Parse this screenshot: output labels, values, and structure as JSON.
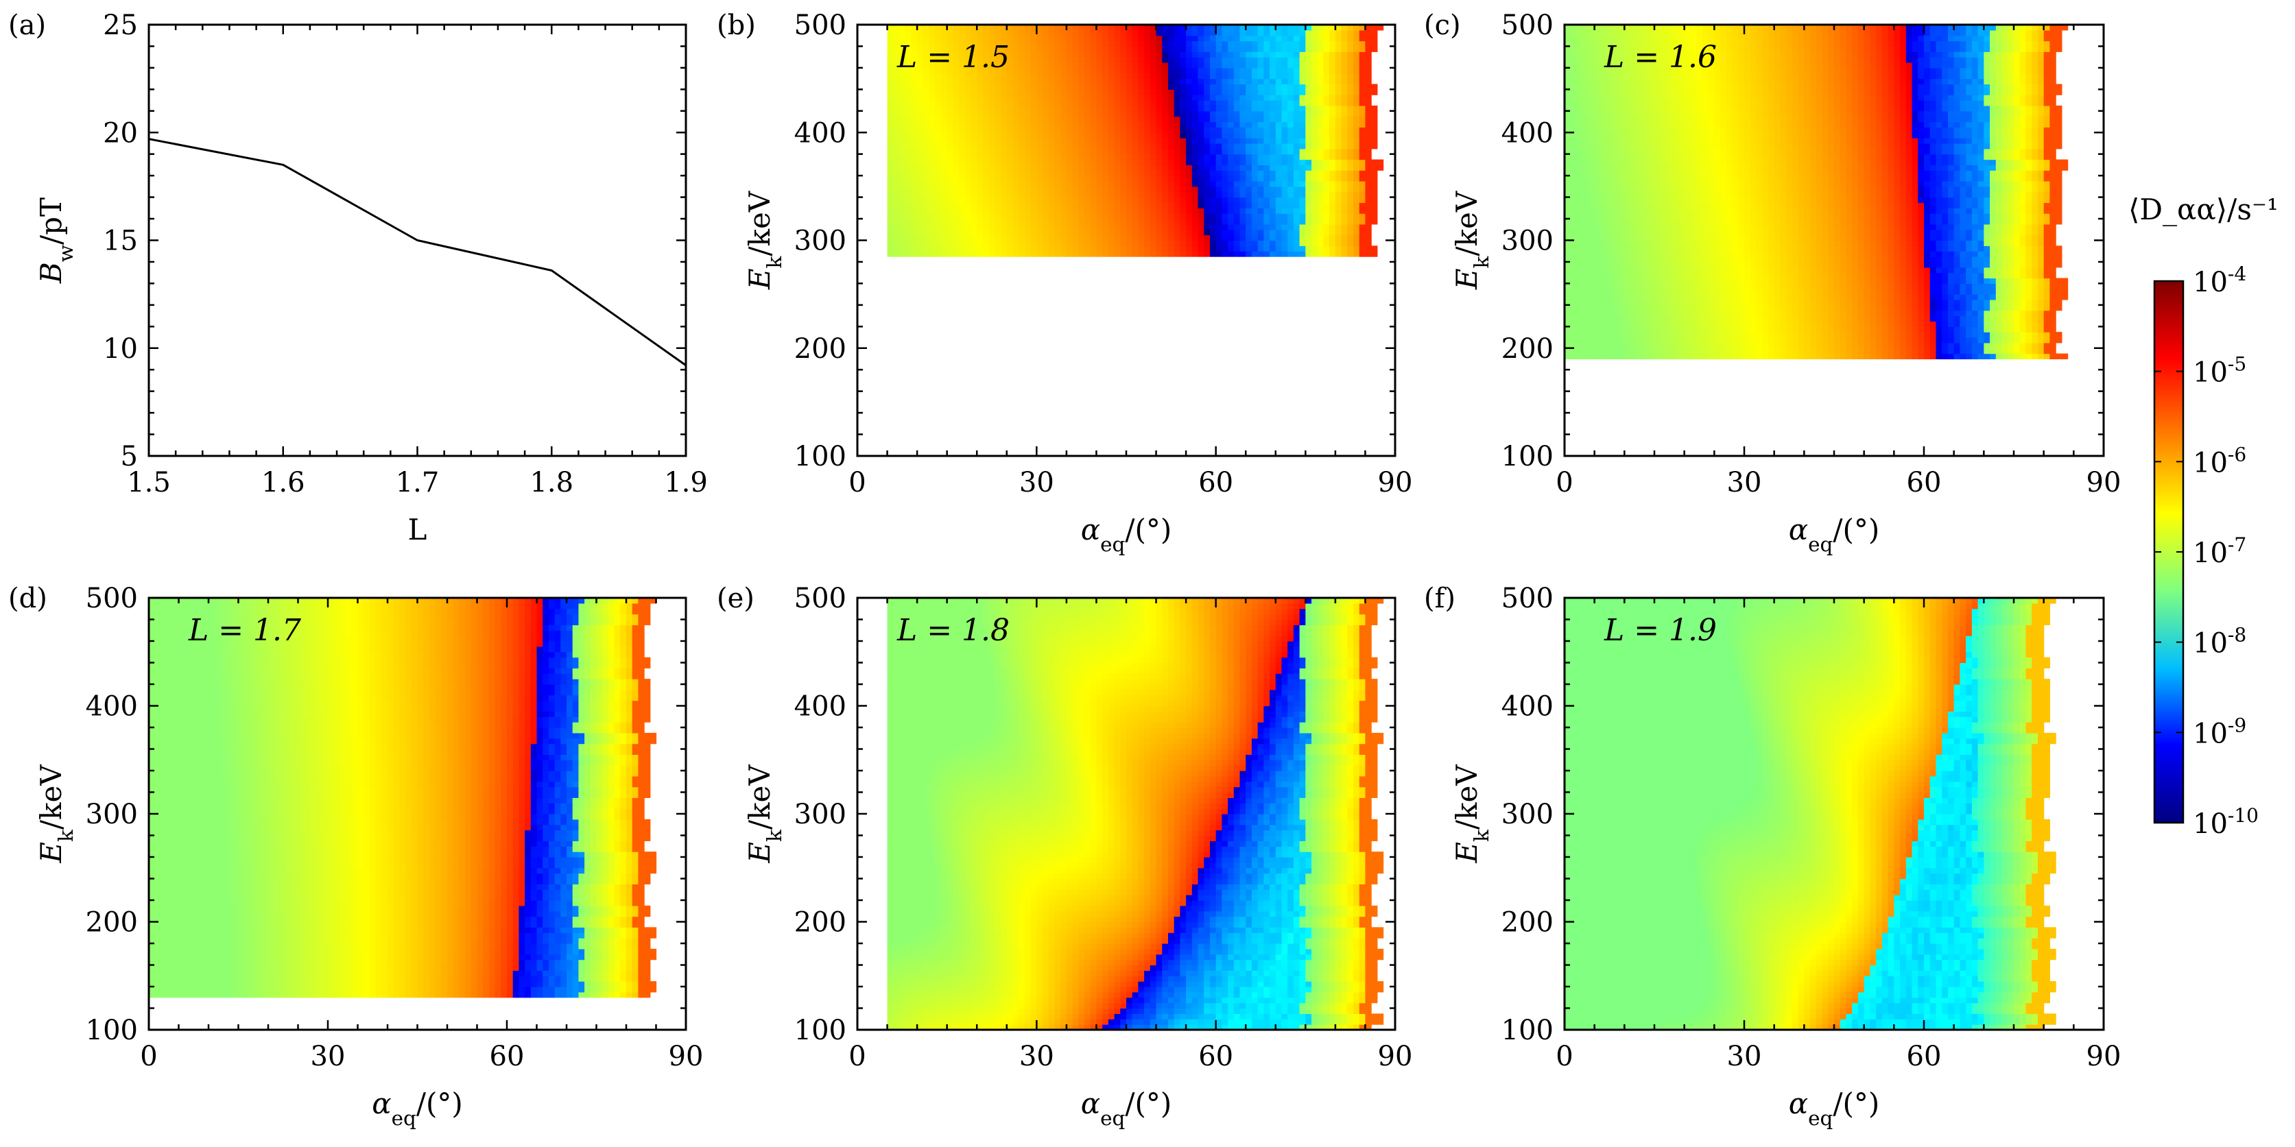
{
  "figure": {
    "colorbar": {
      "label": "⟨D_αα⟩/s⁻¹",
      "ticks": [
        "10^-4",
        "10^-5",
        "10^-6",
        "10^-7",
        "10^-8",
        "10^-9",
        "10^-10"
      ],
      "colors": [
        "#00007f",
        "#0000ff",
        "#00bfff",
        "#7fff7f",
        "#ffff00",
        "#ff7f00",
        "#ff0000",
        "#7f0000"
      ]
    }
  },
  "chart_data": [
    {
      "panel": "(a)",
      "type": "line",
      "x": [
        1.5,
        1.6,
        1.7,
        1.8,
        1.9
      ],
      "y": [
        19.7,
        18.5,
        15.0,
        13.6,
        9.2
      ],
      "xlim": [
        1.5,
        1.9
      ],
      "ylim": [
        5,
        25
      ],
      "xticks": [
        "1.5",
        "1.6",
        "1.7",
        "1.8",
        "1.9"
      ],
      "yticks": [
        "5",
        "10",
        "15",
        "20",
        "25"
      ],
      "xlabel": "L",
      "ylabel": "B_w/pT"
    },
    {
      "panel": "(b)",
      "type": "heatmap",
      "title": "L = 1.5",
      "L": 1.5,
      "xlim": [
        0,
        90
      ],
      "ylim": [
        100,
        500
      ],
      "xticks": [
        "0",
        "30",
        "60",
        "90"
      ],
      "yticks": [
        "100",
        "200",
        "300",
        "400",
        "500"
      ],
      "xlabel": "α_eq/(°)",
      "ylabel": "E_k/keV",
      "pmax": -4.8,
      "maxEdge": 87,
      "edgeSpread": 2.5,
      "boundE100": 73,
      "boundE500": 50,
      "gapWidth": 5,
      "gapLevel": -9.7,
      "minAlpha": 5,
      "cutoffE": 287,
      "flatBand": -6.9
    },
    {
      "panel": "(c)",
      "type": "heatmap",
      "title": "L = 1.6",
      "L": 1.6,
      "xlim": [
        0,
        90
      ],
      "ylim": [
        100,
        500
      ],
      "xticks": [
        "0",
        "30",
        "60",
        "90"
      ],
      "yticks": [
        "100",
        "200",
        "300",
        "400",
        "500"
      ],
      "xlabel": "α_eq/(°)",
      "ylabel": "E_k/keV",
      "pmax": -5.0,
      "maxEdge": 83,
      "edgeSpread": 2.5,
      "boundE100": 65,
      "boundE500": 57,
      "gapWidth": 5,
      "gapLevel": -9.3,
      "minAlpha": 0,
      "cutoffE": 188,
      "flatBand": -6.9
    },
    {
      "panel": "(d)",
      "type": "heatmap",
      "title": "L = 1.7",
      "L": 1.7,
      "xlim": [
        0,
        90
      ],
      "ylim": [
        100,
        500
      ],
      "xticks": [
        "0",
        "30",
        "60",
        "90"
      ],
      "yticks": [
        "100",
        "200",
        "300",
        "400",
        "500"
      ],
      "xlabel": "α_eq/(°)",
      "ylabel": "E_k/keV",
      "pmax": -5.1,
      "maxEdge": 84,
      "edgeSpread": 2.5,
      "boundE100": 60,
      "boundE500": 66,
      "gapWidth": 5,
      "gapLevel": -9.3,
      "minAlpha": 0,
      "cutoffE": 130,
      "flatBand": -6.9
    },
    {
      "panel": "(e)",
      "type": "heatmap",
      "title": "L = 1.8",
      "L": 1.8,
      "xlim": [
        0,
        90
      ],
      "ylim": [
        100,
        500
      ],
      "xticks": [
        "0",
        "30",
        "60",
        "90"
      ],
      "yticks": [
        "100",
        "200",
        "300",
        "400",
        "500"
      ],
      "xlabel": "α_eq/(°)",
      "ylabel": "E_k/keV",
      "pmax": -5.2,
      "maxEdge": 87,
      "edgeSpread": 2.5,
      "boundE100": 40,
      "boundE500": 75,
      "gapWidth": 4,
      "gapLevel": -9.3,
      "minAlpha": 5,
      "cutoffE": 100,
      "flatBand": -6.9
    },
    {
      "panel": "(f)",
      "type": "heatmap",
      "title": "L = 1.9",
      "L": 1.9,
      "xlim": [
        0,
        90
      ],
      "ylim": [
        100,
        500
      ],
      "xticks": [
        "0",
        "30",
        "60",
        "90"
      ],
      "yticks": [
        "100",
        "200",
        "300",
        "400",
        "500"
      ],
      "xlabel": "α_eq/(°)",
      "ylabel": "E_k/keV",
      "pmax": -5.7,
      "maxEdge": 81,
      "edgeSpread": 3,
      "boundE100": 45,
      "boundE500": 69,
      "gapWidth": 0,
      "gapLevel": -9.3,
      "minAlpha": 0,
      "cutoffE": 100,
      "flatBand": -7.0
    }
  ]
}
